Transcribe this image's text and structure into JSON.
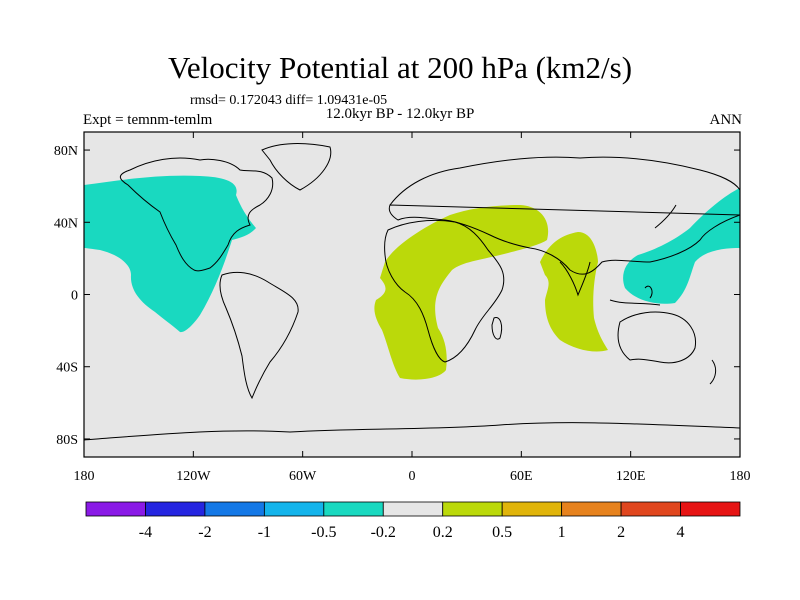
{
  "header": {
    "title": "Velocity Potential at 200 hPa (km2/s)",
    "stats": "rmsd= 0.172043 diff= 1.09431e-05",
    "subtitle": "12.0kyr BP - 12.0kyr BP",
    "left_label": "Expt = temnm-temlm",
    "right_label": "ANN"
  },
  "map": {
    "background_color": "#e6e6e6",
    "coast_color": "#000000",
    "lon_ticks": [
      "180",
      "120W",
      "60W",
      "0",
      "60E",
      "120E",
      "180"
    ],
    "lat_ticks": [
      "80N",
      "40N",
      "0",
      "40S",
      "80S"
    ],
    "shaded_regions": [
      {
        "name": "north-america-pacific-negative",
        "color": "#19d9c0",
        "category": "-0.5 to -0.2"
      },
      {
        "name": "africa-atlantic-positive",
        "color": "#bbd90a",
        "category": "0.2 to 0.5"
      },
      {
        "name": "indian-ocean-positive",
        "color": "#bbd90a",
        "category": "0.2 to 0.5"
      },
      {
        "name": "west-pacific-negative",
        "color": "#19d9c0",
        "category": "-0.5 to -0.2"
      }
    ]
  },
  "colorbar": {
    "colors": [
      "#8a1ae6",
      "#2525e0",
      "#1478e6",
      "#14b4eb",
      "#19d9c0",
      "#e6e6e6",
      "#bbd90a",
      "#e0b40a",
      "#e6821e",
      "#e0461e",
      "#e61414"
    ],
    "labels": [
      "-4",
      "-2",
      "-1",
      "-0.5",
      "-0.2",
      "0.2",
      "0.5",
      "1",
      "2",
      "4"
    ]
  }
}
